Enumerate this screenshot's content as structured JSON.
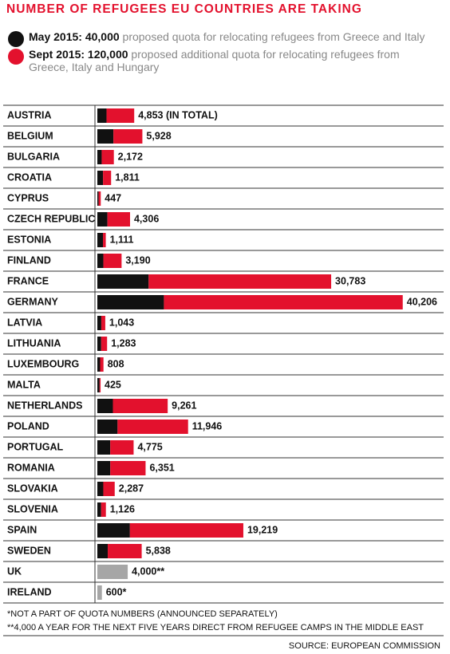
{
  "chart_data": {
    "type": "stacked-bar",
    "title": "NUMBER OF REFUGEES EU COUNTRIES ARE TAKING",
    "categories": [
      "AUSTRIA",
      "BELGIUM",
      "BULGARIA",
      "CROATIA",
      "CYPRUS",
      "CZECH REPUBLIC",
      "ESTONIA",
      "FINLAND",
      "FRANCE",
      "GERMANY",
      "LATVIA",
      "LITHUANIA",
      "LUXEMBOURG",
      "MALTA",
      "NETHERLANDS",
      "POLAND",
      "PORTUGAL",
      "ROMANIA",
      "SLOVAKIA",
      "SLOVENIA",
      "SPAIN",
      "SWEDEN",
      "UK",
      "IRELAND"
    ],
    "series": [
      {
        "name": "May 2015: 40,000",
        "description": "proposed quota for relocating refugees from Greece and Italy",
        "color": "#111111",
        "values": [
          1213,
          2116,
          572,
          747,
          173,
          1328,
          738,
          792,
          6752,
          8763,
          517,
          503,
          368,
          292,
          2047,
          2659,
          1701,
          1705,
          785,
          495,
          4288,
          1369,
          null,
          null
        ]
      },
      {
        "name": "Sept 2015: 120,000",
        "description": "proposed additional quota for relocating refugees from Greece, Italy and Hungary",
        "color": "#e3112d",
        "values": [
          3640,
          3812,
          1600,
          1064,
          274,
          2978,
          373,
          2398,
          24031,
          31443,
          526,
          780,
          440,
          133,
          7214,
          9287,
          3074,
          4646,
          1502,
          631,
          14931,
          4469,
          null,
          null
        ]
      },
      {
        "color": "#a6a6a6",
        "values": [
          null,
          null,
          null,
          null,
          null,
          null,
          null,
          null,
          null,
          null,
          null,
          null,
          null,
          null,
          null,
          null,
          null,
          null,
          null,
          null,
          null,
          null,
          4000,
          600
        ]
      }
    ],
    "totals": [
      4853,
      5928,
      2172,
      1811,
      447,
      4306,
      1111,
      3190,
      30783,
      40206,
      1043,
      1283,
      808,
      425,
      9261,
      11946,
      4775,
      6351,
      2287,
      1126,
      19219,
      5838,
      4000,
      600
    ],
    "total_labels": [
      "4,853 (IN TOTAL)",
      "5,928",
      "2,172",
      "1,811",
      "447",
      "4,306",
      "1,111",
      "3,190",
      "30,783",
      "40,206",
      "1,043",
      "1,283",
      "808",
      "425",
      "9,261",
      "11,946",
      "4,775",
      "6,351",
      "2,287",
      "1,126",
      "19,219",
      "5,838",
      "4,000**",
      "600*"
    ],
    "footnotes": [
      "*NOT A PART OF QUOTA NUMBERS (ANNOUNCED SEPARATELY)",
      "**4,000 A YEAR FOR THE NEXT FIVE YEARS DIRECT FROM REFUGEE CAMPS IN THE MIDDLE EAST"
    ],
    "source": "SOURCE: EUROPEAN COMMISSION"
  }
}
